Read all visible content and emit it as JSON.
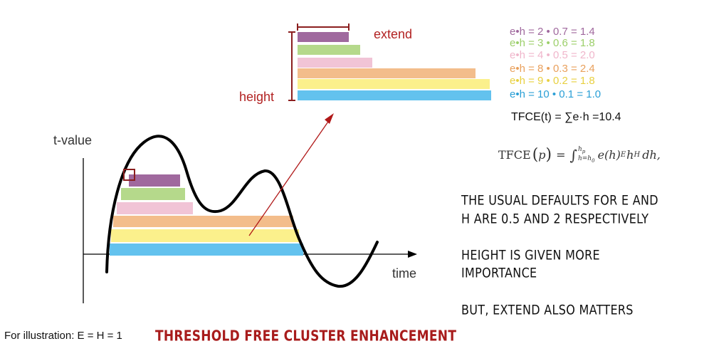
{
  "labels": {
    "extend": "extend",
    "height": "height",
    "y_axis": "t-value",
    "x_axis": "time"
  },
  "colors": {
    "purple": "#a0699e",
    "green": "#b5d98b",
    "pink": "#f1c4d6",
    "orange": "#f3bd8b",
    "yellow": "#fbf08c",
    "blue": "#63c2ee",
    "dark_red": "#8b1f1f",
    "label_red": "#b22222",
    "arrow_red": "#b01818"
  },
  "equations": [
    {
      "text": "e•h = 2 • 0.7 = 1.4",
      "color": "#a0699e"
    },
    {
      "text": "e•h = 3 • 0.6 = 1.8",
      "color": "#9ccf6a"
    },
    {
      "text": "e•h = 4 • 0.5 = 2.0",
      "color": "#f0b6cb"
    },
    {
      "text": "e•h = 8 • 0.3 = 2.4",
      "color": "#e9a05c"
    },
    {
      "text": "e•h = 9 • 0.2 = 1.8",
      "color": "#e8d040"
    },
    {
      "text": "e•h = 10 • 0.1 = 1.0",
      "color": "#2a9fd6"
    }
  ],
  "tfce_sum": "TFCE(t) = ∑e·h =10.4",
  "formula": {
    "lhs": "TFCE",
    "arg": "p",
    "eq": "=",
    "int": "∫",
    "upper": "h",
    "upper_sub": "p",
    "lower": "h=h",
    "lower_sub": "0",
    "body1": "e(h)",
    "exp1": "E",
    "body2": "h",
    "exp2": "H",
    "tail": "dh,"
  },
  "notes": {
    "defaults_line1": "The usual defaults for E and",
    "defaults_line2": "H are 0.5 and 2 respectively",
    "height_line1": "Height is given more",
    "height_line2": "importance",
    "extend": "But, extend also matters"
  },
  "footer": {
    "illustration": "For illustration: E = H = 1",
    "title": "Threshold Free Cluster Enhancement"
  }
}
